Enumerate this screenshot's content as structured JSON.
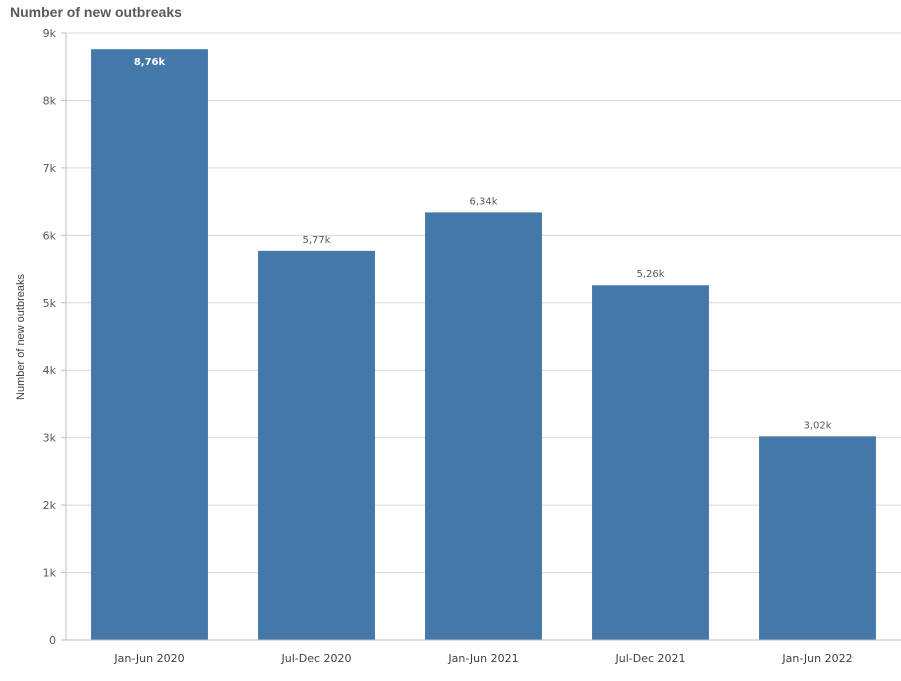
{
  "chart_data": {
    "type": "bar",
    "title": "Number of new outbreaks",
    "ylabel": "Number of new outbreaks",
    "xlabel": "",
    "categories": [
      "Jan-Jun 2020",
      "Jul-Dec 2020",
      "Jan-Jun 2021",
      "Jul-Dec 2021",
      "Jan-Jun 2022"
    ],
    "values": [
      8760,
      5770,
      6340,
      5260,
      3020
    ],
    "data_labels": [
      "8,76k",
      "5,77k",
      "6,34k",
      "5,26k",
      "3,02k"
    ],
    "ylim": [
      0,
      9000
    ],
    "yticks": [
      0,
      1000,
      2000,
      3000,
      4000,
      5000,
      6000,
      7000,
      8000,
      9000
    ],
    "ytick_labels": [
      "0",
      "1k",
      "2k",
      "3k",
      "4k",
      "5k",
      "6k",
      "7k",
      "8k",
      "9k"
    ],
    "grid": true,
    "bar_color": "#4477aa"
  }
}
